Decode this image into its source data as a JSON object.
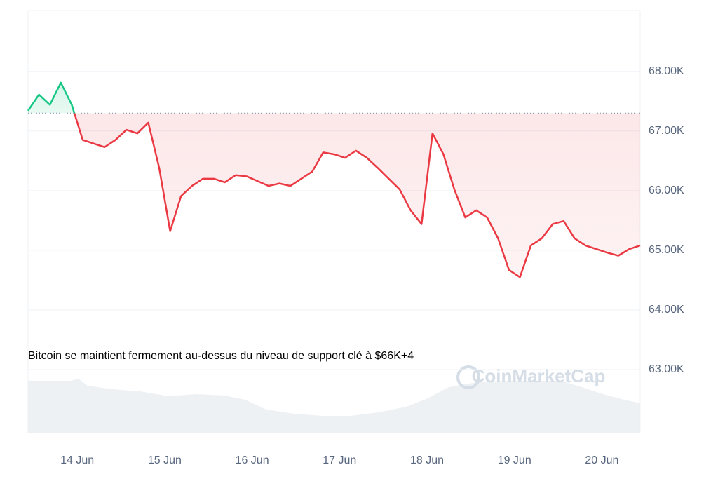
{
  "chart_data": {
    "type": "line",
    "annotation": "Bitcoin se maintient fermement au-dessus du niveau de support clé à $66K+4",
    "watermark": "CoinMarketCap",
    "series": [
      {
        "name": "BTC",
        "color_up": "#16c784",
        "color_down": "#ea3943",
        "values": [
          67340,
          67610,
          67440,
          67810,
          67440,
          66850,
          66790,
          66730,
          66850,
          67020,
          66960,
          67140,
          66380,
          65320,
          65910,
          66080,
          66200,
          66200,
          66140,
          66260,
          66240,
          66160,
          66080,
          66120,
          66080,
          66200,
          66320,
          66640,
          66610,
          66550,
          66670,
          66550,
          66380,
          66200,
          66020,
          65670,
          65440,
          66960,
          66610,
          66020,
          65550,
          65670,
          65550,
          65200,
          64670,
          64550,
          65080,
          65200,
          65440,
          65490,
          65200,
          65080,
          65020,
          64960,
          64910,
          65020,
          65080
        ]
      }
    ],
    "baseline": 67300,
    "xlim": [
      0,
      56
    ],
    "xticks": [
      {
        "value": 4.5,
        "label": "14 Jun"
      },
      {
        "value": 12.5,
        "label": "15 Jun"
      },
      {
        "value": 20.5,
        "label": "16 Jun"
      },
      {
        "value": 28.5,
        "label": "17 Jun"
      },
      {
        "value": 36.5,
        "label": "18 Jun"
      },
      {
        "value": 44.5,
        "label": "19 Jun"
      },
      {
        "value": 52.5,
        "label": "20 Jun"
      }
    ],
    "ylim": [
      61930,
      69020
    ],
    "yticks": [
      {
        "value": 63000,
        "label": "63.00K"
      },
      {
        "value": 64000,
        "label": "64.00K"
      },
      {
        "value": 65000,
        "label": "65.00K"
      },
      {
        "value": 66000,
        "label": "66.00K"
      },
      {
        "value": 67000,
        "label": "67.00K"
      },
      {
        "value": 68000,
        "label": "68.00K"
      }
    ],
    "grid": true
  }
}
